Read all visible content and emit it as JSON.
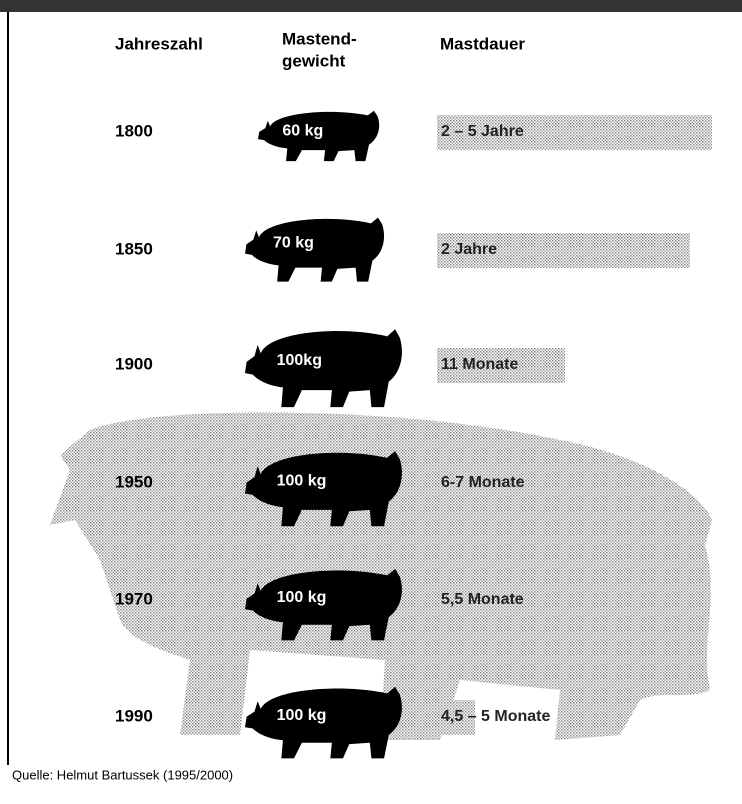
{
  "header": {
    "year": "Jahreszahl",
    "weight_lines": [
      "Mastend-",
      "gewicht"
    ],
    "duration": "Mastdauer"
  },
  "rows": [
    {
      "year": "1800",
      "weight": "60 kg",
      "duration": "2 – 5 Jahre"
    },
    {
      "year": "1850",
      "weight": "70 kg",
      "duration": "2 Jahre"
    },
    {
      "year": "1900",
      "weight": "100kg",
      "duration": "11 Monate"
    },
    {
      "year": "1950",
      "weight": "100 kg",
      "duration": "6-7 Monate"
    },
    {
      "year": "1970",
      "weight": "100 kg",
      "duration": "5,5 Monate"
    },
    {
      "year": "1990",
      "weight": "100 kg",
      "duration": "4,5 – 5 Monate"
    }
  ],
  "source": "Quelle: Helmut Bartussek (1995/2000)"
}
